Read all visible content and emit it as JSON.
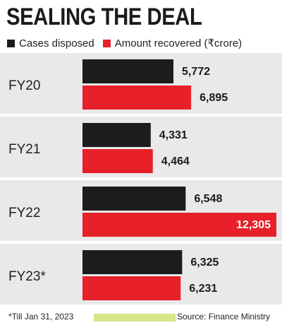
{
  "title": "SEALING THE DEAL",
  "legend": {
    "series_a": "Cases disposed",
    "series_b": "Amount recovered (₹crore)"
  },
  "colors": {
    "series_a": "#1c1c1c",
    "series_b": "#e8202a",
    "panel": "#e9e9e9",
    "footer_bar": "#d6e68a"
  },
  "footnote": "*Till Jan 31, 2023",
  "source": "Source: Finance Ministry",
  "chart_data": {
    "type": "bar",
    "orientation": "horizontal",
    "categories": [
      "FY20",
      "FY21",
      "FY22",
      "FY23*"
    ],
    "series": [
      {
        "name": "Cases disposed",
        "values": [
          5772,
          4331,
          6548,
          6325
        ],
        "labels": [
          "5,772",
          "4,331",
          "6,548",
          "6,325"
        ]
      },
      {
        "name": "Amount recovered (₹crore)",
        "values": [
          6895,
          4464,
          12305,
          6231
        ],
        "labels": [
          "6,895",
          "4,464",
          "12,305",
          "6,231"
        ]
      }
    ],
    "grid": false,
    "legend_position": "top-left"
  }
}
